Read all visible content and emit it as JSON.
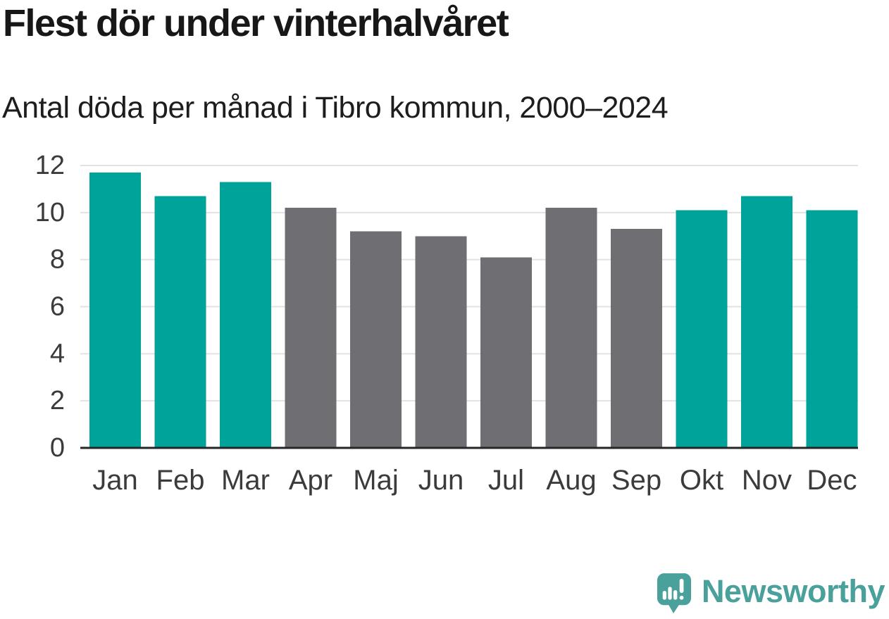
{
  "header": {
    "title": "Flest dör under vinterhalvåret",
    "subtitle": "Antal döda per månad i Tibro kommun, 2000–2024"
  },
  "chart_data": {
    "type": "bar",
    "title": "Flest dör under vinterhalvåret",
    "subtitle": "Antal döda per månad i Tibro kommun, 2000–2024",
    "categories": [
      "Jan",
      "Feb",
      "Mar",
      "Apr",
      "Maj",
      "Jun",
      "Jul",
      "Aug",
      "Sep",
      "Okt",
      "Nov",
      "Dec"
    ],
    "values": [
      11.7,
      10.7,
      11.3,
      10.2,
      9.2,
      9.0,
      8.1,
      10.2,
      9.3,
      10.1,
      10.7,
      10.1
    ],
    "bar_colors": [
      "teal",
      "teal",
      "teal",
      "gray",
      "gray",
      "gray",
      "gray",
      "gray",
      "gray",
      "teal",
      "teal",
      "teal"
    ],
    "xlabel": "",
    "ylabel": "",
    "ylim": [
      0,
      12
    ],
    "yticks": [
      0,
      2,
      4,
      6,
      8,
      10,
      12
    ],
    "grid": true,
    "legend": false,
    "highlight_meaning": "winter-half-year months highlighted in teal"
  },
  "colors": {
    "highlight_teal": "#00a39a",
    "neutral_gray": "#6e6e73",
    "gridline": "#e2e2e2",
    "axis_line": "#262626",
    "axis_text": "#3b3b3b",
    "title_text": "#171717",
    "logo_teal": "#4aa09b",
    "background": "#ffffff"
  },
  "footer": {
    "brand": "Newsworthy"
  }
}
